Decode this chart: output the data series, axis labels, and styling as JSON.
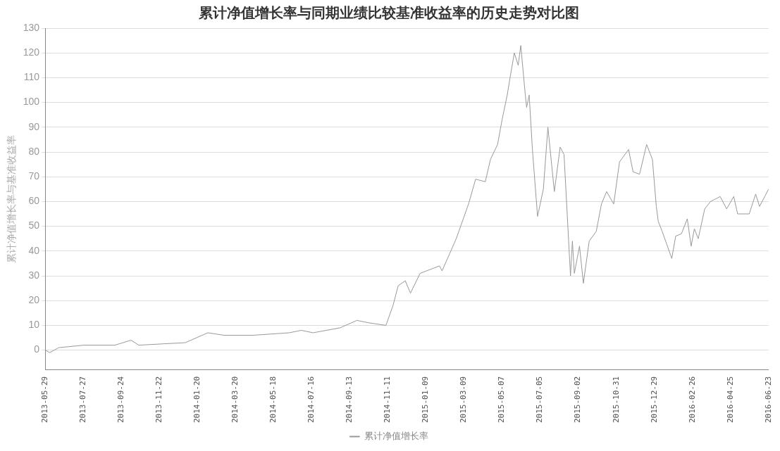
{
  "chart_data": {
    "type": "line",
    "title": "累计净值增长率与同期业绩比较基准收益率的历史走势对比图",
    "ylabel": "累计净值增长率与基准收益率",
    "x": [
      "2013-05-29",
      "2013-06-05",
      "2013-06-19",
      "2013-07-28",
      "2013-09-14",
      "2013-10-09",
      "2013-10-21",
      "2014-01-01",
      "2014-02-05",
      "2014-03-02",
      "2014-04-16",
      "2014-06-11",
      "2014-06-30",
      "2014-07-18",
      "2014-08-29",
      "2014-09-24",
      "2014-10-13",
      "2014-11-08",
      "2014-11-19",
      "2014-11-27",
      "2014-12-08",
      "2014-12-16",
      "2014-12-31",
      "2015-01-30",
      "2015-02-03",
      "2015-02-25",
      "2015-03-16",
      "2015-03-27",
      "2015-04-11",
      "2015-04-19",
      "2015-04-30",
      "2015-05-07",
      "2015-05-15",
      "2015-05-20",
      "2015-05-26",
      "2015-06-01",
      "2015-06-05",
      "2015-06-12",
      "2015-06-14",
      "2015-06-18",
      "2015-06-23",
      "2015-07-01",
      "2015-07-10",
      "2015-07-17",
      "2015-07-27",
      "2015-08-05",
      "2015-08-11",
      "2015-08-21",
      "2015-08-24",
      "2015-08-27",
      "2015-09-04",
      "2015-09-10",
      "2015-09-19",
      "2015-09-30",
      "2015-10-08",
      "2015-10-16",
      "2015-10-27",
      "2015-11-05",
      "2015-11-19",
      "2015-11-26",
      "2015-12-06",
      "2015-12-17",
      "2015-12-26",
      "2016-01-01",
      "2016-01-04",
      "2016-01-10",
      "2016-01-25",
      "2016-01-31",
      "2016-02-09",
      "2016-02-18",
      "2016-02-24",
      "2016-02-29",
      "2016-03-06",
      "2016-03-16",
      "2016-03-25",
      "2016-04-09",
      "2016-04-19",
      "2016-04-30",
      "2016-05-06",
      "2016-05-24",
      "2016-06-03",
      "2016-06-09",
      "2016-06-17",
      "2016-06-23"
    ],
    "series": [
      {
        "name": "累计净值增长率",
        "color": "#999999",
        "values": [
          0,
          -1,
          1,
          2,
          2,
          4,
          2,
          3,
          7,
          6,
          6,
          7,
          8,
          7,
          9,
          12,
          11,
          10,
          18,
          26,
          28,
          23,
          31,
          34,
          32,
          45,
          59,
          69,
          68,
          77,
          83,
          93,
          103,
          111,
          120,
          115,
          123,
          103,
          98,
          103,
          81,
          54,
          65,
          90,
          64,
          82,
          79,
          30,
          44,
          31,
          42,
          27,
          44,
          48,
          59,
          64,
          59,
          76,
          81,
          72,
          71,
          83,
          77,
          58,
          52,
          48,
          37,
          46,
          47,
          53,
          42,
          49,
          45,
          57,
          60,
          62,
          57,
          62,
          55,
          55,
          63,
          58,
          62,
          65
        ]
      }
    ],
    "xlim": [
      "2013-05-29",
      "2016-06-23"
    ],
    "xticks": [
      "2013-05-29",
      "2013-07-27",
      "2013-09-24",
      "2013-11-22",
      "2014-01-20",
      "2014-03-20",
      "2014-05-18",
      "2014-07-16",
      "2014-09-13",
      "2014-11-11",
      "2015-01-09",
      "2015-03-09",
      "2015-05-07",
      "2015-07-05",
      "2015-09-02",
      "2015-10-31",
      "2015-12-29",
      "2016-02-26",
      "2016-04-25",
      "2016-06-23"
    ],
    "ylim": [
      -8,
      130
    ],
    "yticks": [
      0,
      10,
      20,
      30,
      40,
      50,
      60,
      70,
      80,
      90,
      100,
      110,
      120,
      130
    ],
    "grid": "y",
    "legend": "bottom",
    "marker": "none",
    "line_style": "solid"
  }
}
